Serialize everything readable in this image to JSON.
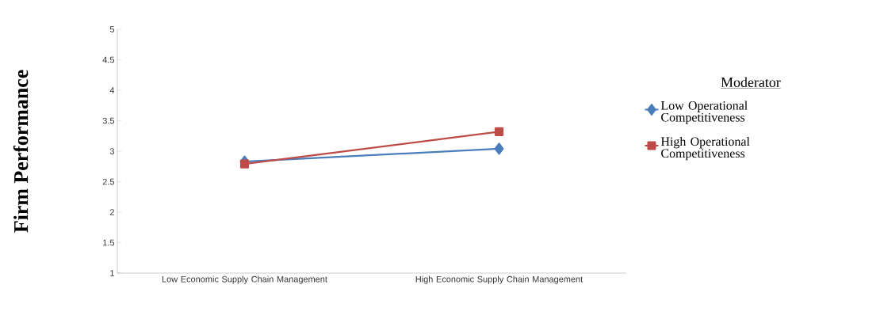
{
  "chart_data": {
    "type": "line",
    "ylabel": "Firm Performance",
    "legend_title": "Moderator",
    "categories": [
      "Low Economic Supply Chain Management",
      "High Economic Supply Chain Management"
    ],
    "series": [
      {
        "name": "Low Operational Competitiveness",
        "color": "#4a7ebb",
        "values": [
          2.83,
          3.04
        ],
        "marker": "diamond"
      },
      {
        "name": "High Operational Competitiveness",
        "color": "#be4b48",
        "values": [
          2.79,
          3.32
        ],
        "marker": "square"
      }
    ],
    "ylim": [
      1,
      5
    ],
    "yticks": [
      1,
      1.5,
      2,
      2.5,
      3,
      3.5,
      4,
      4.5,
      5
    ],
    "grid": false,
    "legend": "right",
    "line_style": "solid"
  }
}
